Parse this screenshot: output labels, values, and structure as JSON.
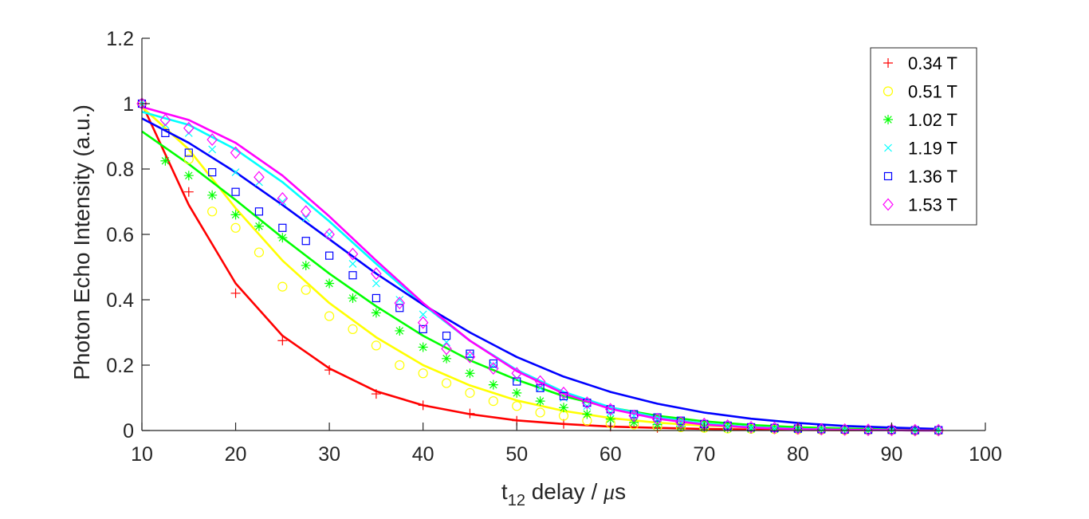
{
  "chart_data": {
    "type": "scatter",
    "title": "",
    "xlabel_main": "t",
    "xlabel_sub": "12",
    "xlabel_rest": " delay / ",
    "xlabel_mu": "μ",
    "xlabel_unit": "s",
    "ylabel": "Photon Echo Intensity (a.u.)",
    "xlim": [
      10,
      100
    ],
    "ylim": [
      0,
      1.2
    ],
    "xticks": [
      10,
      20,
      30,
      40,
      50,
      60,
      70,
      80,
      90,
      100
    ],
    "yticks": [
      0,
      0.2,
      0.4,
      0.6,
      0.8,
      1,
      1.2
    ],
    "xtick_labels": [
      "10",
      "20",
      "30",
      "40",
      "50",
      "60",
      "70",
      "80",
      "90",
      "100"
    ],
    "ytick_labels": [
      "0",
      "0.2",
      "0.4",
      "0.6",
      "0.8",
      "1",
      "1.2"
    ],
    "grid": false,
    "legend_position": "top-right",
    "series": [
      {
        "name": "0.34 T",
        "color": "#ff0000",
        "marker": "plus",
        "points": [
          [
            10,
            1
          ],
          [
            15,
            0.73
          ],
          [
            20,
            0.42
          ],
          [
            25,
            0.275
          ],
          [
            30,
            0.185
          ],
          [
            35,
            0.112
          ],
          [
            40,
            0.077
          ],
          [
            45,
            0.052
          ],
          [
            50,
            0.03
          ],
          [
            55,
            0.02
          ],
          [
            60,
            0.012
          ],
          [
            65,
            0.008
          ]
        ],
        "fit": [
          [
            10,
            1
          ],
          [
            15,
            0.69
          ],
          [
            20,
            0.45
          ],
          [
            25,
            0.29
          ],
          [
            30,
            0.19
          ],
          [
            35,
            0.12
          ],
          [
            40,
            0.077
          ],
          [
            45,
            0.05
          ],
          [
            50,
            0.031
          ],
          [
            55,
            0.02
          ],
          [
            60,
            0.012
          ],
          [
            65,
            0.008
          ],
          [
            70,
            0.005
          ],
          [
            75,
            0.003
          ],
          [
            80,
            0.002
          ],
          [
            85,
            0.001
          ],
          [
            90,
            0.001
          ],
          [
            95,
            0
          ]
        ]
      },
      {
        "name": "0.51 T",
        "color": "#ffff00",
        "marker": "circle",
        "points": [
          [
            10,
            1
          ],
          [
            15,
            0.83
          ],
          [
            17.5,
            0.67
          ],
          [
            20,
            0.62
          ],
          [
            22.5,
            0.545
          ],
          [
            25,
            0.44
          ],
          [
            27.5,
            0.43
          ],
          [
            30,
            0.35
          ],
          [
            32.5,
            0.31
          ],
          [
            35,
            0.26
          ],
          [
            37.5,
            0.2
          ],
          [
            40,
            0.175
          ],
          [
            42.5,
            0.145
          ],
          [
            45,
            0.115
          ],
          [
            47.5,
            0.09
          ],
          [
            50,
            0.075
          ],
          [
            52.5,
            0.055
          ],
          [
            55,
            0.045
          ],
          [
            57.5,
            0.03
          ],
          [
            60,
            0.022
          ],
          [
            62.5,
            0.018
          ],
          [
            65,
            0.012
          ],
          [
            67.5,
            0.01
          ],
          [
            70,
            0.008
          ],
          [
            72.5,
            0.006
          ],
          [
            75,
            0.005
          ],
          [
            77.5,
            0.004
          ],
          [
            80,
            0.003
          ],
          [
            82.5,
            0.002
          ],
          [
            85,
            0.001
          ],
          [
            87.5,
            0.001
          ],
          [
            90,
            0.001
          ],
          [
            92.5,
            0
          ],
          [
            95,
            0
          ]
        ],
        "fit": [
          [
            10,
            0.99
          ],
          [
            15,
            0.86
          ],
          [
            20,
            0.68
          ],
          [
            25,
            0.52
          ],
          [
            30,
            0.39
          ],
          [
            35,
            0.285
          ],
          [
            40,
            0.2
          ],
          [
            45,
            0.138
          ],
          [
            50,
            0.092
          ],
          [
            55,
            0.06
          ],
          [
            60,
            0.038
          ],
          [
            65,
            0.024
          ],
          [
            70,
            0.015
          ],
          [
            75,
            0.009
          ],
          [
            80,
            0.005
          ],
          [
            85,
            0.003
          ],
          [
            90,
            0.002
          ],
          [
            95,
            0.001
          ]
        ]
      },
      {
        "name": "1.02 T",
        "color": "#00ff00",
        "marker": "asterisk",
        "points": [
          [
            12.5,
            0.825
          ],
          [
            15,
            0.78
          ],
          [
            17.5,
            0.72
          ],
          [
            20,
            0.66
          ],
          [
            22.5,
            0.625
          ],
          [
            25,
            0.59
          ],
          [
            27.5,
            0.505
          ],
          [
            30,
            0.45
          ],
          [
            32.5,
            0.405
          ],
          [
            35,
            0.36
          ],
          [
            37.5,
            0.305
          ],
          [
            40,
            0.255
          ],
          [
            42.5,
            0.22
          ],
          [
            45,
            0.175
          ],
          [
            47.5,
            0.14
          ],
          [
            50,
            0.115
          ],
          [
            52.5,
            0.09
          ],
          [
            55,
            0.07
          ],
          [
            57.5,
            0.05
          ],
          [
            60,
            0.035
          ],
          [
            62.5,
            0.025
          ],
          [
            65,
            0.018
          ],
          [
            67.5,
            0.012
          ],
          [
            70,
            0.01
          ],
          [
            72.5,
            0.007
          ],
          [
            75,
            0.005
          ],
          [
            77.5,
            0.004
          ],
          [
            80,
            0.003
          ],
          [
            82.5,
            0.002
          ],
          [
            85,
            0.002
          ],
          [
            87.5,
            0.001
          ],
          [
            90,
            0.001
          ],
          [
            92.5,
            0.001
          ],
          [
            95,
            0.001
          ]
        ],
        "fit": [
          [
            10,
            0.915
          ],
          [
            15,
            0.815
          ],
          [
            20,
            0.705
          ],
          [
            25,
            0.59
          ],
          [
            30,
            0.48
          ],
          [
            35,
            0.38
          ],
          [
            40,
            0.29
          ],
          [
            45,
            0.215
          ],
          [
            50,
            0.155
          ],
          [
            55,
            0.105
          ],
          [
            60,
            0.07
          ],
          [
            65,
            0.045
          ],
          [
            70,
            0.028
          ],
          [
            75,
            0.017
          ],
          [
            80,
            0.01
          ],
          [
            85,
            0.006
          ],
          [
            90,
            0.003
          ],
          [
            95,
            0.002
          ]
        ]
      },
      {
        "name": "1.19 T",
        "color": "#00ffff",
        "marker": "cross",
        "points": [
          [
            10,
            1
          ],
          [
            12.5,
            0.935
          ],
          [
            15,
            0.91
          ],
          [
            17.5,
            0.86
          ],
          [
            20,
            0.79
          ],
          [
            22.5,
            0.76
          ],
          [
            25,
            0.7
          ],
          [
            27.5,
            0.65
          ],
          [
            30,
            0.6
          ],
          [
            32.5,
            0.51
          ],
          [
            35,
            0.45
          ],
          [
            37.5,
            0.4
          ],
          [
            40,
            0.355
          ],
          [
            42.5,
            0.27
          ],
          [
            45,
            0.23
          ],
          [
            47.5,
            0.2
          ],
          [
            50,
            0.16
          ],
          [
            52.5,
            0.13
          ],
          [
            55,
            0.1
          ],
          [
            57.5,
            0.075
          ],
          [
            60,
            0.055
          ],
          [
            62.5,
            0.045
          ],
          [
            65,
            0.03
          ],
          [
            67.5,
            0.022
          ],
          [
            70,
            0.016
          ],
          [
            72.5,
            0.012
          ],
          [
            75,
            0.008
          ],
          [
            77.5,
            0.006
          ],
          [
            80,
            0.004
          ],
          [
            82.5,
            0.003
          ],
          [
            85,
            0.002
          ],
          [
            87.5,
            0.002
          ],
          [
            90,
            0.001
          ],
          [
            92.5,
            0.001
          ],
          [
            95,
            0.001
          ]
        ],
        "fit": [
          [
            10,
            0.975
          ],
          [
            15,
            0.935
          ],
          [
            20,
            0.86
          ],
          [
            25,
            0.76
          ],
          [
            30,
            0.64
          ],
          [
            35,
            0.51
          ],
          [
            40,
            0.385
          ],
          [
            45,
            0.275
          ],
          [
            50,
            0.185
          ],
          [
            55,
            0.118
          ],
          [
            60,
            0.071
          ],
          [
            65,
            0.04
          ],
          [
            70,
            0.021
          ],
          [
            75,
            0.011
          ],
          [
            80,
            0.005
          ],
          [
            85,
            0.002
          ],
          [
            90,
            0.001
          ],
          [
            95,
            0
          ]
        ]
      },
      {
        "name": "1.36 T",
        "color": "#0000ff",
        "marker": "square",
        "points": [
          [
            10,
            1
          ],
          [
            12.5,
            0.91
          ],
          [
            15,
            0.85
          ],
          [
            17.5,
            0.79
          ],
          [
            20,
            0.73
          ],
          [
            22.5,
            0.67
          ],
          [
            25,
            0.62
          ],
          [
            27.5,
            0.58
          ],
          [
            30,
            0.535
          ],
          [
            32.5,
            0.475
          ],
          [
            35,
            0.405
          ],
          [
            37.5,
            0.375
          ],
          [
            40,
            0.31
          ],
          [
            42.5,
            0.29
          ],
          [
            45,
            0.235
          ],
          [
            47.5,
            0.205
          ],
          [
            50,
            0.15
          ],
          [
            52.5,
            0.13
          ],
          [
            55,
            0.105
          ],
          [
            57.5,
            0.085
          ],
          [
            60,
            0.065
          ],
          [
            62.5,
            0.05
          ],
          [
            65,
            0.04
          ],
          [
            67.5,
            0.03
          ],
          [
            70,
            0.02
          ],
          [
            72.5,
            0.015
          ],
          [
            75,
            0.01
          ],
          [
            77.5,
            0.008
          ],
          [
            80,
            0.006
          ],
          [
            82.5,
            0.004
          ],
          [
            85,
            0.003
          ],
          [
            87.5,
            0.002
          ],
          [
            90,
            0.002
          ],
          [
            92.5,
            0.001
          ],
          [
            95,
            0.001
          ]
        ],
        "fit": [
          [
            10,
            0.955
          ],
          [
            15,
            0.88
          ],
          [
            20,
            0.79
          ],
          [
            25,
            0.69
          ],
          [
            30,
            0.585
          ],
          [
            35,
            0.48
          ],
          [
            40,
            0.385
          ],
          [
            45,
            0.3
          ],
          [
            50,
            0.225
          ],
          [
            55,
            0.165
          ],
          [
            60,
            0.118
          ],
          [
            65,
            0.082
          ],
          [
            70,
            0.055
          ],
          [
            75,
            0.036
          ],
          [
            80,
            0.023
          ],
          [
            85,
            0.014
          ],
          [
            90,
            0.009
          ],
          [
            95,
            0.005
          ]
        ]
      },
      {
        "name": "1.53 T",
        "color": "#ff00ff",
        "marker": "diamond",
        "points": [
          [
            10,
            1
          ],
          [
            12.5,
            0.95
          ],
          [
            15,
            0.925
          ],
          [
            17.5,
            0.89
          ],
          [
            20,
            0.85
          ],
          [
            22.5,
            0.775
          ],
          [
            25,
            0.71
          ],
          [
            27.5,
            0.67
          ],
          [
            30,
            0.6
          ],
          [
            32.5,
            0.54
          ],
          [
            35,
            0.48
          ],
          [
            37.5,
            0.39
          ],
          [
            40,
            0.33
          ],
          [
            42.5,
            0.25
          ],
          [
            45,
            0.225
          ],
          [
            47.5,
            0.19
          ],
          [
            50,
            0.175
          ],
          [
            52.5,
            0.15
          ],
          [
            55,
            0.115
          ],
          [
            57.5,
            0.085
          ],
          [
            60,
            0.065
          ],
          [
            62.5,
            0.045
          ],
          [
            65,
            0.035
          ],
          [
            67.5,
            0.025
          ],
          [
            70,
            0.02
          ],
          [
            72.5,
            0.015
          ],
          [
            75,
            0.01
          ],
          [
            77.5,
            0.008
          ],
          [
            80,
            0.006
          ],
          [
            82.5,
            0.004
          ],
          [
            85,
            0.003
          ],
          [
            87.5,
            0.002
          ],
          [
            90,
            0.002
          ],
          [
            92.5,
            0.001
          ],
          [
            95,
            0.001
          ]
        ],
        "fit": [
          [
            10,
            0.99
          ],
          [
            15,
            0.95
          ],
          [
            20,
            0.88
          ],
          [
            25,
            0.78
          ],
          [
            30,
            0.655
          ],
          [
            35,
            0.52
          ],
          [
            40,
            0.39
          ],
          [
            45,
            0.275
          ],
          [
            50,
            0.182
          ],
          [
            55,
            0.113
          ],
          [
            60,
            0.066
          ],
          [
            65,
            0.036
          ],
          [
            70,
            0.018
          ],
          [
            75,
            0.009
          ],
          [
            80,
            0.004
          ],
          [
            85,
            0.002
          ],
          [
            90,
            0.001
          ],
          [
            95,
            0
          ]
        ]
      }
    ]
  }
}
